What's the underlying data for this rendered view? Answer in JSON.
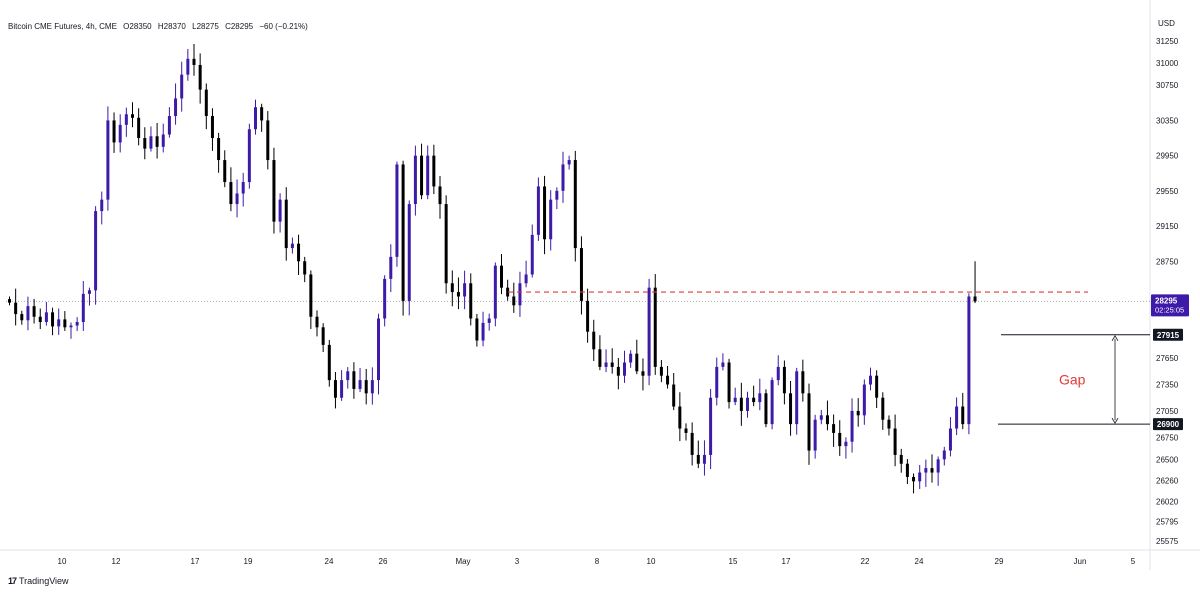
{
  "header": {
    "symbol": "Bitcoin CME Futures, 4h, CME",
    "open": "O28350",
    "high": "H28370",
    "low": "L28275",
    "close": "C28295",
    "change": "−60 (−0.21%)"
  },
  "currency": "USD",
  "brand": {
    "logo": "17",
    "name": "TradingView"
  },
  "colors": {
    "candle": "#3d1aa7",
    "candle_dark": "#000000",
    "dashed_level": "#e53935",
    "gap_text": "#e53935",
    "dotted_price": "#9e9e9e"
  },
  "chart_data": {
    "type": "candlestick",
    "ylim": [
      25470,
      31400
    ],
    "y_ticks": [
      "31250",
      "31000",
      "30750",
      "30350",
      "29950",
      "29550",
      "29150",
      "28750",
      "28295",
      "27915",
      "27650",
      "27350",
      "27050",
      "26900",
      "26750",
      "26500",
      "26260",
      "26020",
      "25795",
      "25575"
    ],
    "x_ticks": [
      "10",
      "12",
      "17",
      "19",
      "24",
      "26",
      "May",
      "3",
      "8",
      "10",
      "15",
      "17",
      "22",
      "24",
      "29",
      "Jun",
      "5"
    ],
    "last_price": "28295",
    "countdown": "02:25:05",
    "level_labels": [
      "27915",
      "26900"
    ],
    "annotation": "Gap",
    "dashed_level_price": 28400,
    "gap_top": 27915,
    "gap_bottom": 26900,
    "closes": [
      28280,
      28150,
      28080,
      28240,
      28120,
      28060,
      28170,
      28010,
      28090,
      28000,
      28020,
      28060,
      28380,
      28420,
      29320,
      29450,
      30350,
      30100,
      30300,
      30420,
      30380,
      30150,
      30030,
      30170,
      30050,
      30190,
      30400,
      30600,
      30870,
      31050,
      30980,
      30700,
      30400,
      30150,
      29900,
      29650,
      29400,
      29520,
      29650,
      30250,
      30500,
      30350,
      29900,
      29200,
      29450,
      28900,
      28950,
      28750,
      28600,
      28120,
      28000,
      27800,
      27400,
      27200,
      27400,
      27500,
      27300,
      27400,
      27250,
      27400,
      28100,
      28550,
      28800,
      29850,
      28300,
      29400,
      29950,
      29500,
      29950,
      29600,
      29400,
      28500,
      28400,
      28350,
      28500,
      28100,
      27850,
      28050,
      28100,
      28700,
      28450,
      28350,
      28250,
      28500,
      28600,
      29050,
      29600,
      29000,
      29450,
      29550,
      29850,
      29900,
      28900,
      28300,
      27950,
      27750,
      27550,
      27600,
      27550,
      27450,
      27600,
      27700,
      27500,
      27450,
      28450,
      27550,
      27450,
      27350,
      27100,
      26850,
      26800,
      26550,
      26450,
      26550,
      27200,
      27550,
      27600,
      27150,
      27200,
      27050,
      27200,
      27150,
      27250,
      26900,
      27400,
      27550,
      27250,
      26900,
      27500,
      27250,
      26600,
      26950,
      27000,
      26900,
      26800,
      26650,
      26700,
      27050,
      27000,
      27350,
      27450,
      27200,
      26950,
      26850,
      26550,
      26450,
      26300,
      26250,
      26350,
      26400,
      26350,
      26500,
      26600,
      26850,
      27100,
      26900,
      28350,
      28295
    ]
  }
}
